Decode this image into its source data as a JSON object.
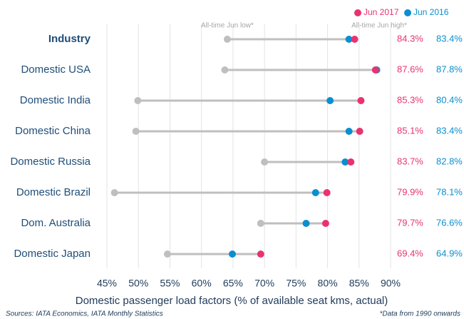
{
  "chart_data": {
    "type": "dumbbell",
    "categories": [
      "Industry",
      "Domestic USA",
      "Domestic India",
      "Domestic China",
      "Domestic Russia",
      "Domestic Brazil",
      "Dom. Australia",
      "Domestic Japan"
    ],
    "series": [
      {
        "name": "All-time Jun low*",
        "color": "#bfbfbf",
        "values": [
          64.1,
          63.7,
          49.9,
          49.6,
          70.0,
          46.2,
          69.4,
          54.6
        ]
      },
      {
        "name": "Jun 2017",
        "color": "#e8336f",
        "values": [
          84.3,
          87.6,
          85.3,
          85.1,
          83.7,
          79.9,
          79.7,
          69.4
        ],
        "value_labels": [
          "84.3%",
          "87.6%",
          "85.3%",
          "85.1%",
          "83.7%",
          "79.9%",
          "79.7%",
          "69.4%"
        ]
      },
      {
        "name": "Jun 2016",
        "color": "#0a8fd0",
        "values": [
          83.4,
          87.8,
          80.4,
          83.4,
          82.8,
          78.1,
          76.6,
          64.9
        ],
        "value_labels": [
          "83.4%",
          "87.8%",
          "80.4%",
          "83.4%",
          "82.8%",
          "78.1%",
          "76.6%",
          "64.9%"
        ]
      }
    ],
    "high_annotation": "All-time Jun high*",
    "xlim": [
      45,
      90
    ],
    "xticks": [
      {
        "value": 45,
        "label": "45%"
      },
      {
        "value": 50,
        "label": "50%"
      },
      {
        "value": 55,
        "label": "55%"
      },
      {
        "value": 60,
        "label": "60%"
      },
      {
        "value": 65,
        "label": "65%"
      },
      {
        "value": 70,
        "label": "70%"
      },
      {
        "value": 75,
        "label": "75%"
      },
      {
        "value": 80,
        "label": "80%"
      },
      {
        "value": 85,
        "label": "85%"
      },
      {
        "value": 90,
        "label": "90%"
      }
    ],
    "xlabel": "Domestic passenger load factors (% of available seat kms, actual)",
    "source": "Sources: IATA Economics, IATA Monthly Statistics",
    "footnote": "*Data from 1990 onwards",
    "grid": true
  }
}
